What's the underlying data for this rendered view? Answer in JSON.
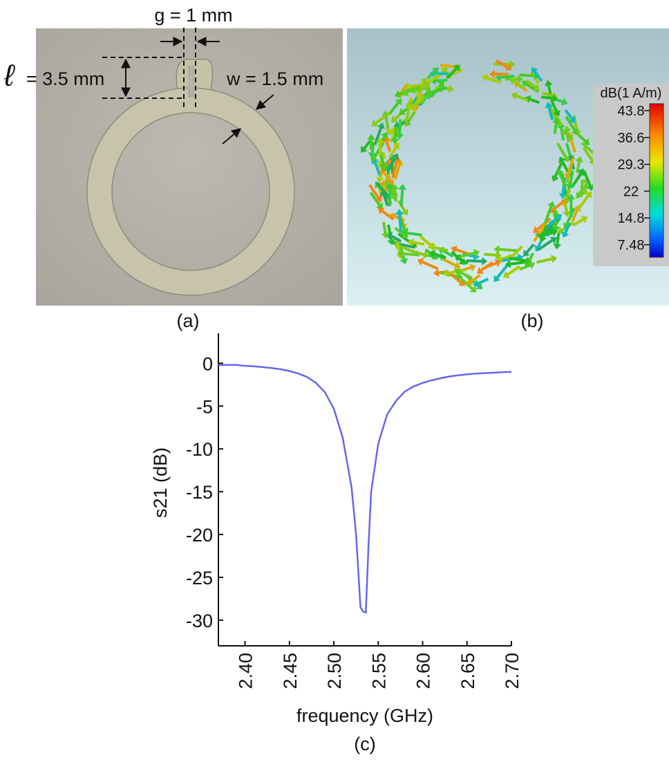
{
  "panel_a": {
    "label": "(a)",
    "dim_gap": "g = 1 mm",
    "dim_len_symbol": "ℓ",
    "dim_len_value": "= 3.5 mm",
    "dim_width": "w = 1.5 mm",
    "colors": {
      "paper": "#b7b3a9",
      "ring": "#c8c5ac"
    }
  },
  "panel_b": {
    "label": "(b)",
    "colorbar_title": "dB(1 A/m)",
    "colorbar_ticks": [
      "43.8",
      "36.6",
      "29.3",
      "22",
      "14.8",
      "7.48"
    ],
    "colors": {
      "bg_top": "#a9c4cc",
      "bg_bottom": "#d7eef1",
      "legend_bg": "#c9c9c9"
    }
  },
  "chart_data": {
    "type": "line",
    "panel_label": "(c)",
    "xlabel": "frequency (GHz)",
    "ylabel": "s21 (dB)",
    "xlim": [
      2.37,
      2.7
    ],
    "ylim": [
      -33,
      3.5
    ],
    "xticks": [
      "2.40",
      "2.45",
      "2.50",
      "2.55",
      "2.60",
      "2.65",
      "2.70"
    ],
    "yticks": [
      "0",
      "-5",
      "-10",
      "-15",
      "-20",
      "-25",
      "-30"
    ],
    "grid": false,
    "line_color": "#6666ee",
    "series": [
      {
        "x": [
          2.37,
          2.38,
          2.39,
          2.4,
          2.41,
          2.42,
          2.43,
          2.44,
          2.45,
          2.46,
          2.47,
          2.48,
          2.49,
          2.5,
          2.51,
          2.52,
          2.525,
          2.53,
          2.533,
          2.536,
          2.539,
          2.542,
          2.55,
          2.56,
          2.57,
          2.58,
          2.59,
          2.6,
          2.61,
          2.62,
          2.63,
          2.64,
          2.65,
          2.66,
          2.67,
          2.68,
          2.69,
          2.7
        ],
        "y": [
          -0.2,
          -0.2,
          -0.2,
          -0.3,
          -0.35,
          -0.45,
          -0.55,
          -0.7,
          -0.9,
          -1.2,
          -1.6,
          -2.3,
          -3.4,
          -5.3,
          -8.7,
          -14.5,
          -20.0,
          -28.5,
          -29.0,
          -29.1,
          -21.5,
          -15.0,
          -9.4,
          -6.0,
          -4.4,
          -3.3,
          -2.7,
          -2.3,
          -2.0,
          -1.75,
          -1.55,
          -1.4,
          -1.3,
          -1.2,
          -1.15,
          -1.1,
          -1.05,
          -1.0
        ]
      }
    ]
  }
}
